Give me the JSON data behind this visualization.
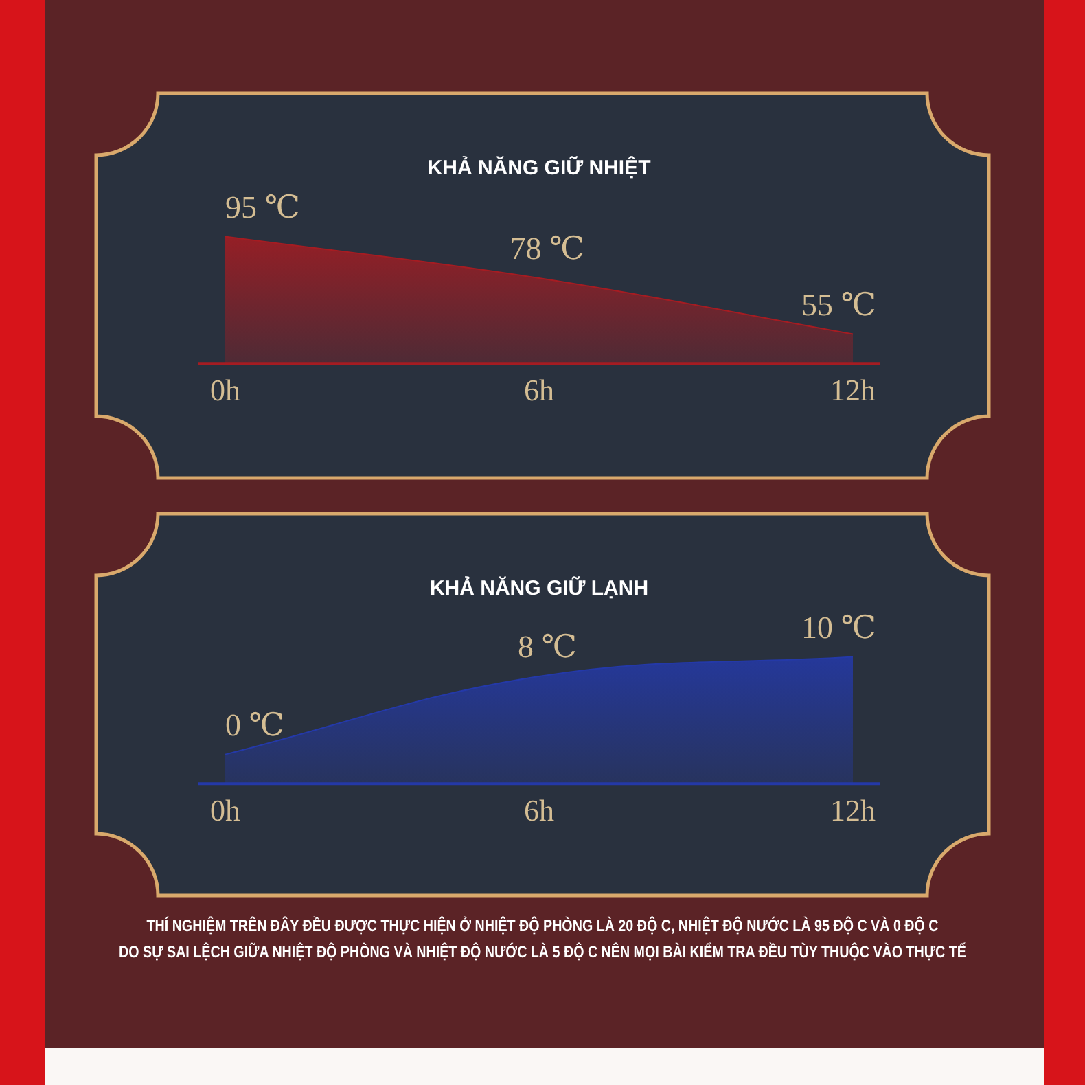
{
  "chart_data": [
    {
      "type": "area",
      "title": "KHẢ NĂNG GIỮ NHIỆT",
      "categories": [
        "0h",
        "6h",
        "12h"
      ],
      "values": [
        95,
        78,
        55
      ],
      "value_labels": [
        "95 ℃",
        "78 ℃",
        "55 ℃"
      ],
      "color": "#a51c22",
      "tick_labels": "x"
    },
    {
      "type": "area",
      "title": "KHẢ NĂNG GIỮ LẠNH",
      "categories": [
        "0h",
        "6h",
        "12h"
      ],
      "values": [
        0,
        8,
        10
      ],
      "value_labels": [
        "0 ℃",
        "8 ℃",
        "10 ℃"
      ],
      "color": "#2439a8",
      "tick_labels": "x",
      "annotations": [
        "THÍ NGHIỆM TRÊN ĐÂY ĐỀU ĐƯỢC THỰC HIỆN Ở NHIỆT ĐỘ PHÒNG LÀ 20 ĐỘ C, NHIỆT ĐỘ NƯỚC LÀ 95 ĐỘ C VÀ 0 ĐỘ C",
        "DO SỰ SAI LỆCH GIỮA NHIỆT ĐỘ PHÒNG VÀ NHIỆT ĐỘ NƯỚC LÀ 5 ĐỘ C NÊN MỌI BÀI KIỂM TRA ĐỀU TÙY THUỘC VÀO THỰC TẾ"
      ]
    }
  ]
}
